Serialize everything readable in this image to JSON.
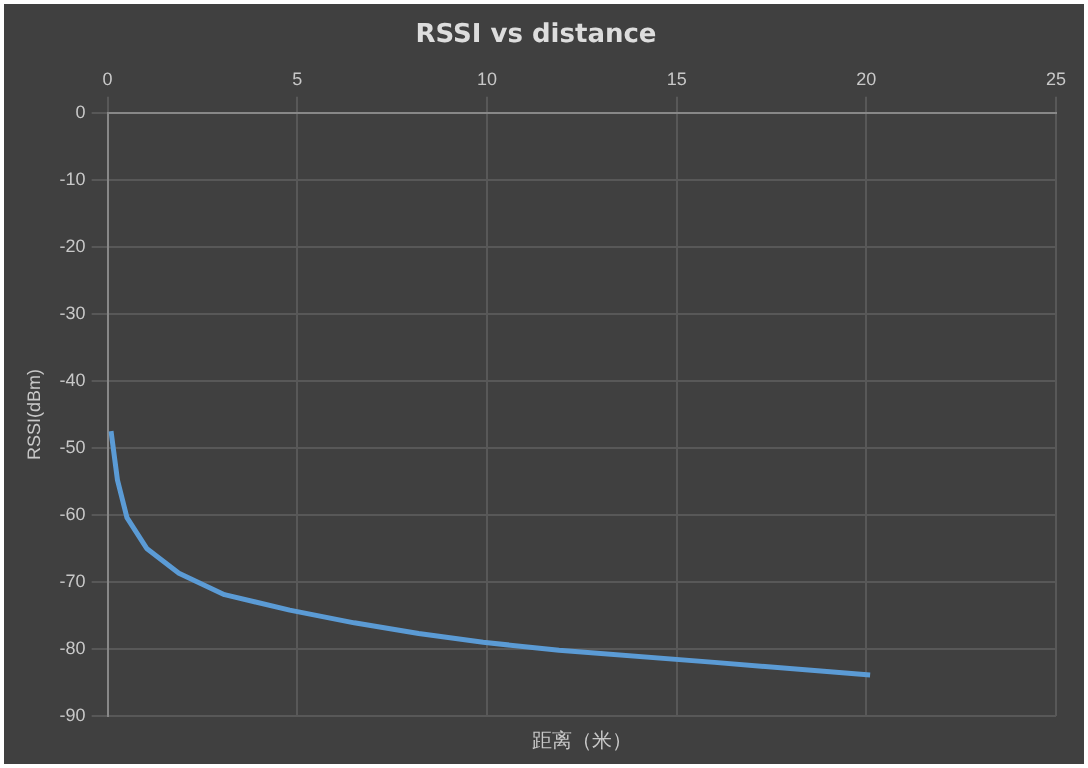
{
  "chart_data": {
    "type": "line",
    "title": "RSSI vs distance",
    "xlabel": "距离（米）",
    "ylabel": "RSSI(dBm)",
    "x": [
      0.09,
      0.26,
      0.51,
      1.03,
      1.88,
      3.08,
      4.8,
      6.5,
      8.2,
      9.9,
      11.9,
      16,
      20.1
    ],
    "series": [
      {
        "color": "#5b9bd5",
        "values": [
          -47.5,
          -54.8,
          -60.4,
          -65,
          -68.7,
          -71.9,
          -74.2,
          -76.1,
          -77.7,
          -79,
          -80.2,
          -82,
          -83.9
        ]
      }
    ],
    "xlim": [
      0,
      25
    ],
    "xticks": [
      0,
      5,
      10,
      15,
      20,
      25
    ],
    "ylim": [
      -90,
      0
    ],
    "yticks": [
      0,
      -10,
      -20,
      -30,
      -40,
      -50,
      -60,
      -70,
      -80,
      -90
    ],
    "grid": true,
    "marker": "none",
    "line_style": "solid",
    "legend": false
  }
}
